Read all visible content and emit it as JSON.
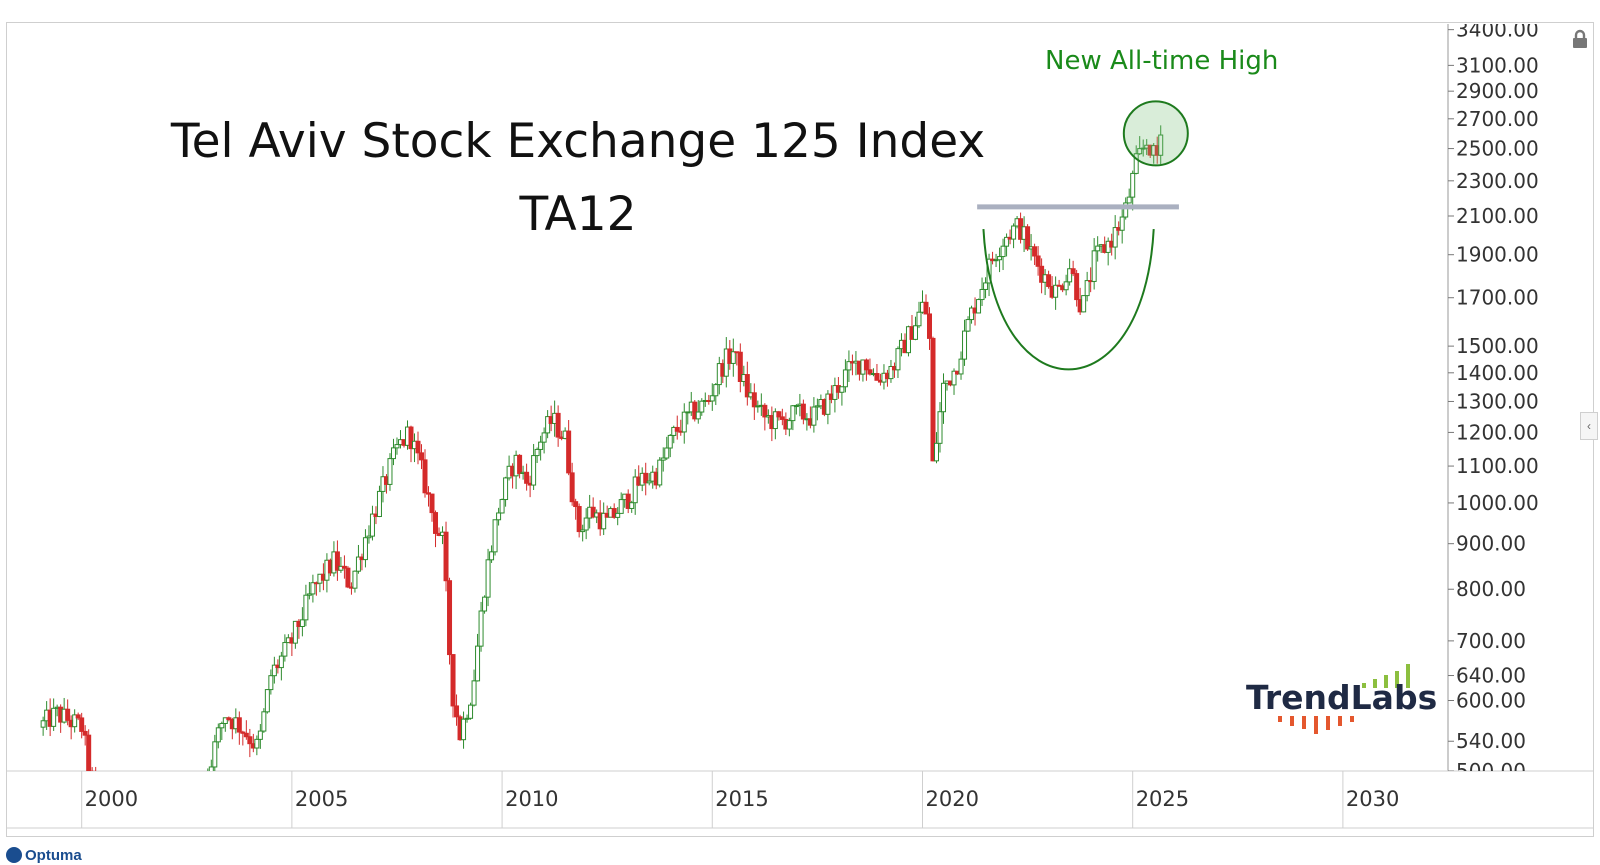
{
  "chart_data": {
    "type": "candlestick",
    "title": "Tel Aviv Stock Exchange 125 Index",
    "subtitle": "TA12",
    "y_scale": "log",
    "ylim": [
      500,
      3450
    ],
    "y_ticks": [
      "3400.00",
      "3100.00",
      "2900.00",
      "2700.00",
      "2500.00",
      "2300.00",
      "2100.00",
      "1900.00",
      "1700.00",
      "1500.00",
      "1400.00",
      "1300.00",
      "1200.00",
      "1100.00",
      "1000.00",
      "900.00",
      "800.00",
      "700.00",
      "640.00",
      "600.00",
      "540.00",
      "500.00"
    ],
    "xlim": [
      1998.2,
      2032.5
    ],
    "x_ticks": [
      "2000",
      "2005",
      "2010",
      "2015",
      "2020",
      "2025",
      "2030"
    ],
    "price_path": [
      [
        1999.0,
        560
      ],
      [
        1999.4,
        580
      ],
      [
        2000.0,
        560
      ],
      [
        2000.3,
        470
      ],
      [
        2002.8,
        470
      ],
      [
        2003.1,
        520
      ],
      [
        2003.4,
        580
      ],
      [
        2003.8,
        560
      ],
      [
        2004.2,
        530
      ],
      [
        2004.5,
        640
      ],
      [
        2005.0,
        700
      ],
      [
        2005.5,
        800
      ],
      [
        2006.0,
        860
      ],
      [
        2006.4,
        810
      ],
      [
        2006.8,
        930
      ],
      [
        2007.2,
        1050
      ],
      [
        2007.5,
        1150
      ],
      [
        2007.8,
        1200
      ],
      [
        2008.1,
        1080
      ],
      [
        2008.4,
        950
      ],
      [
        2008.6,
        900
      ],
      [
        2008.8,
        620
      ],
      [
        2009.0,
        550
      ],
      [
        2009.3,
        620
      ],
      [
        2009.6,
        820
      ],
      [
        2009.9,
        980
      ],
      [
        2010.3,
        1120
      ],
      [
        2010.6,
        1050
      ],
      [
        2010.9,
        1180
      ],
      [
        2011.2,
        1240
      ],
      [
        2011.5,
        1180
      ],
      [
        2011.8,
        930
      ],
      [
        2012.1,
        980
      ],
      [
        2012.5,
        950
      ],
      [
        2012.9,
        1000
      ],
      [
        2013.3,
        1060
      ],
      [
        2013.7,
        1080
      ],
      [
        2014.1,
        1200
      ],
      [
        2014.5,
        1260
      ],
      [
        2014.9,
        1300
      ],
      [
        2015.2,
        1420
      ],
      [
        2015.5,
        1480
      ],
      [
        2015.8,
        1340
      ],
      [
        2016.2,
        1250
      ],
      [
        2016.6,
        1230
      ],
      [
        2017.0,
        1260
      ],
      [
        2017.4,
        1250
      ],
      [
        2017.8,
        1310
      ],
      [
        2018.2,
        1400
      ],
      [
        2018.6,
        1450
      ],
      [
        2018.9,
        1380
      ],
      [
        2019.3,
        1420
      ],
      [
        2019.7,
        1550
      ],
      [
        2020.05,
        1680
      ],
      [
        2020.2,
        1480
      ],
      [
        2020.25,
        1100
      ],
      [
        2020.5,
        1350
      ],
      [
        2020.8,
        1420
      ],
      [
        2021.1,
        1600
      ],
      [
        2021.4,
        1750
      ],
      [
        2021.7,
        1900
      ],
      [
        2022.0,
        2000
      ],
      [
        2022.3,
        2050
      ],
      [
        2022.6,
        1900
      ],
      [
        2022.9,
        1800
      ],
      [
        2023.2,
        1720
      ],
      [
        2023.5,
        1850
      ],
      [
        2023.8,
        1650
      ],
      [
        2024.1,
        1880
      ],
      [
        2024.5,
        1980
      ],
      [
        2024.8,
        2100
      ],
      [
        2025.1,
        2420
      ],
      [
        2025.35,
        2550
      ],
      [
        2025.45,
        2500
      ],
      [
        2025.55,
        2400
      ],
      [
        2025.7,
        2650
      ]
    ],
    "resistance_level": 2150,
    "candle_colors": {
      "up": "#2e8b2e",
      "down": "#d42a2a"
    },
    "annotation": {
      "text": "New All-time High",
      "color": "#1a8a1a"
    },
    "brand": "TrendLabs"
  },
  "footer": {
    "optuma": "Optuma"
  }
}
